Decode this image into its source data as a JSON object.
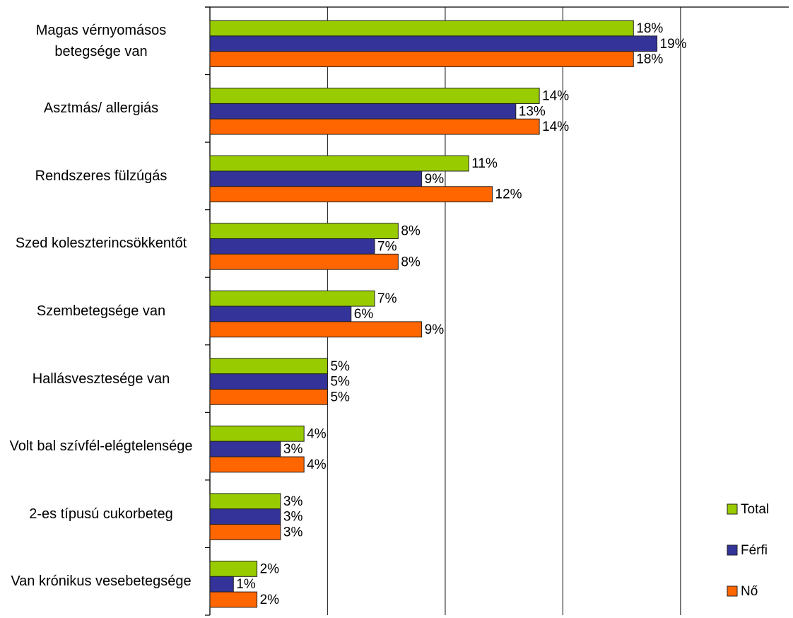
{
  "chart_data": {
    "type": "hbar",
    "categories": [
      "Magas vérnyomásos betegsége van",
      "Asztmás/ allergiás",
      "Rendszeres fülzúgás",
      "Szed koleszterincsökkentőt",
      "Szembetegsége van",
      "Hallásvesztesége van",
      "Volt bal szívfél-elégtelensége",
      "2-es típusú cukorbeteg",
      "Van krónikus vesebetegsége"
    ],
    "series": [
      {
        "name": "Total",
        "color": "#99cc00",
        "values": [
          18,
          14,
          11,
          8,
          7,
          5,
          4,
          3,
          2
        ],
        "value_labels": [
          "18%",
          "14%",
          "11%",
          "8%",
          "7%",
          "5%",
          "4%",
          "3%",
          "2%"
        ]
      },
      {
        "name": "Férfi",
        "color": "#333399",
        "values": [
          19,
          13,
          9,
          7,
          6,
          5,
          3,
          3,
          1
        ],
        "value_labels": [
          "19%",
          "13%",
          "9%",
          "7%",
          "6%",
          "5%",
          "3%",
          "3%",
          "1%"
        ]
      },
      {
        "name": "Nő",
        "color": "#ff6600",
        "values": [
          18,
          14,
          12,
          8,
          9,
          5,
          4,
          3,
          2
        ],
        "value_labels": [
          "18%",
          "14%",
          "12%",
          "8%",
          "9%",
          "5%",
          "4%",
          "3%",
          "2%"
        ]
      }
    ],
    "xlim": [
      0,
      24.6
    ],
    "xticks": [
      0,
      5,
      10,
      15,
      20
    ],
    "grid": true,
    "legend": "right"
  }
}
